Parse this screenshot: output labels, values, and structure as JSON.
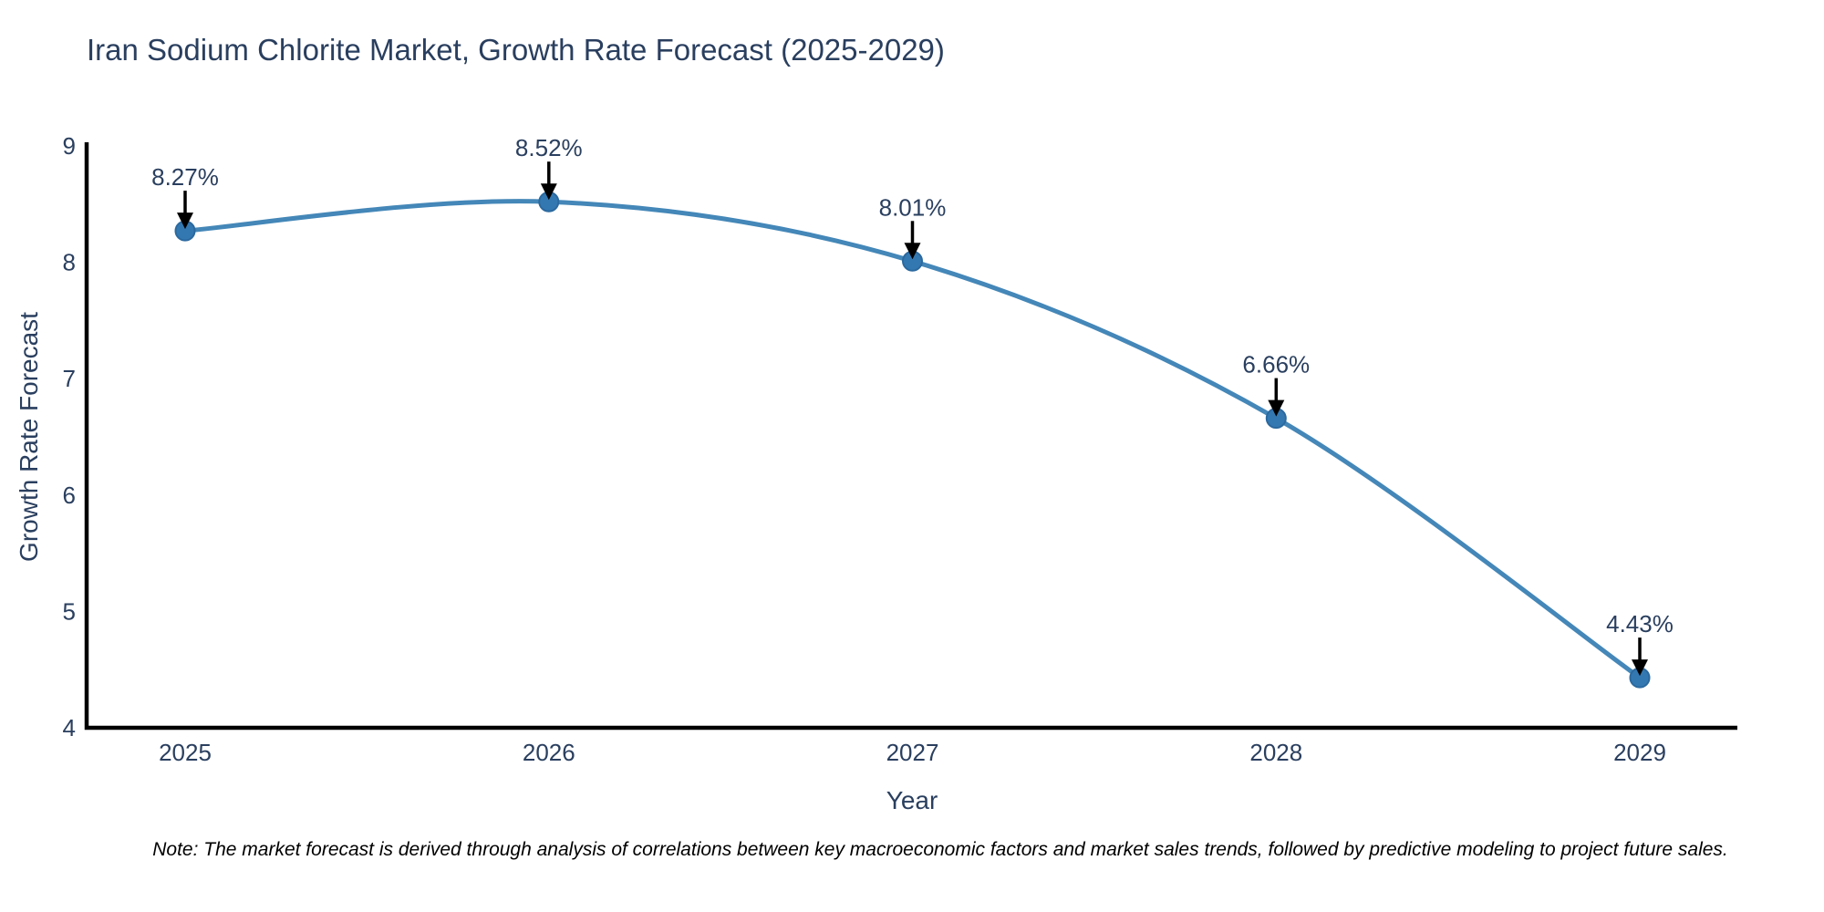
{
  "chart_data": {
    "type": "line",
    "title": "Iran Sodium Chlorite Market, Growth Rate Forecast (2025-2029)",
    "xlabel": "Year",
    "ylabel": "Growth Rate Forecast",
    "x": [
      "2025",
      "2026",
      "2027",
      "2028",
      "2029"
    ],
    "series": [
      {
        "name": "Growth Rate Forecast",
        "values": [
          8.27,
          8.52,
          8.01,
          6.66,
          4.43
        ],
        "point_labels": [
          "8.27%",
          "8.52%",
          "8.01%",
          "6.66%",
          "4.43%"
        ]
      }
    ],
    "ylim": [
      4,
      9
    ],
    "yticks": [
      4,
      5,
      6,
      7,
      8,
      9
    ],
    "grid": false,
    "legend_position": "none",
    "line_shape": "spline",
    "annotation_style": "value-label-with-down-arrow",
    "note": "Note: The market forecast is derived through analysis of correlations between key macroeconomic factors and market sales trends, followed by predictive modeling to project future sales.",
    "colors": {
      "line": "#4487b8",
      "marker_fill": "#3478b1",
      "marker_edge": "#2b699f",
      "axis_line": "#000000",
      "text": "#2a3f5f",
      "arrow": "#000000",
      "note_text": "#000000",
      "background": "#ffffff"
    }
  }
}
